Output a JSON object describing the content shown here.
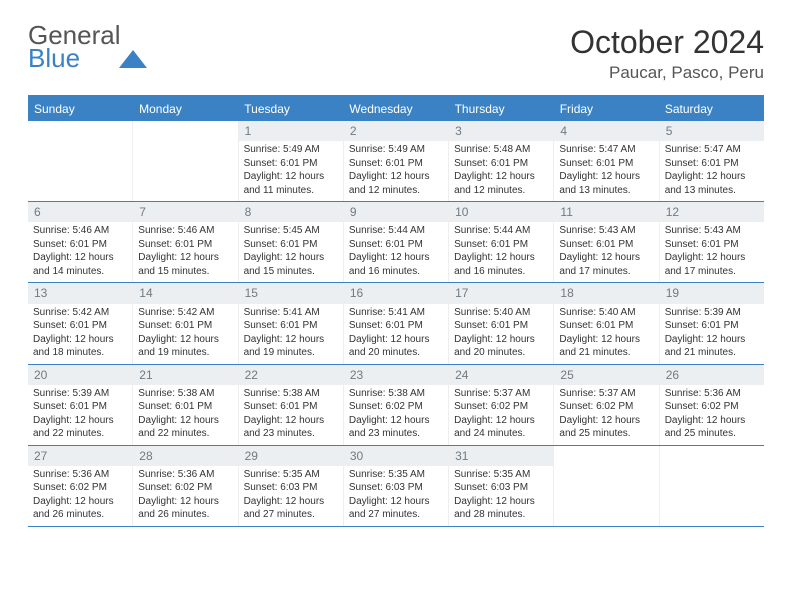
{
  "logo": {
    "word1": "General",
    "word2": "Blue"
  },
  "title": "October 2024",
  "location": "Paucar, Pasco, Peru",
  "day_names": [
    "Sunday",
    "Monday",
    "Tuesday",
    "Wednesday",
    "Thursday",
    "Friday",
    "Saturday"
  ],
  "colors": {
    "brand": "#3b82c4",
    "header_bg": "#3b82c4",
    "daynum_bg": "#eceff1",
    "daynum_fg": "#707a82"
  },
  "weeks": [
    [
      null,
      null,
      {
        "n": "1",
        "sr": "5:49 AM",
        "ss": "6:01 PM",
        "dl": "12 hours and 11 minutes."
      },
      {
        "n": "2",
        "sr": "5:49 AM",
        "ss": "6:01 PM",
        "dl": "12 hours and 12 minutes."
      },
      {
        "n": "3",
        "sr": "5:48 AM",
        "ss": "6:01 PM",
        "dl": "12 hours and 12 minutes."
      },
      {
        "n": "4",
        "sr": "5:47 AM",
        "ss": "6:01 PM",
        "dl": "12 hours and 13 minutes."
      },
      {
        "n": "5",
        "sr": "5:47 AM",
        "ss": "6:01 PM",
        "dl": "12 hours and 13 minutes."
      }
    ],
    [
      {
        "n": "6",
        "sr": "5:46 AM",
        "ss": "6:01 PM",
        "dl": "12 hours and 14 minutes."
      },
      {
        "n": "7",
        "sr": "5:46 AM",
        "ss": "6:01 PM",
        "dl": "12 hours and 15 minutes."
      },
      {
        "n": "8",
        "sr": "5:45 AM",
        "ss": "6:01 PM",
        "dl": "12 hours and 15 minutes."
      },
      {
        "n": "9",
        "sr": "5:44 AM",
        "ss": "6:01 PM",
        "dl": "12 hours and 16 minutes."
      },
      {
        "n": "10",
        "sr": "5:44 AM",
        "ss": "6:01 PM",
        "dl": "12 hours and 16 minutes."
      },
      {
        "n": "11",
        "sr": "5:43 AM",
        "ss": "6:01 PM",
        "dl": "12 hours and 17 minutes."
      },
      {
        "n": "12",
        "sr": "5:43 AM",
        "ss": "6:01 PM",
        "dl": "12 hours and 17 minutes."
      }
    ],
    [
      {
        "n": "13",
        "sr": "5:42 AM",
        "ss": "6:01 PM",
        "dl": "12 hours and 18 minutes."
      },
      {
        "n": "14",
        "sr": "5:42 AM",
        "ss": "6:01 PM",
        "dl": "12 hours and 19 minutes."
      },
      {
        "n": "15",
        "sr": "5:41 AM",
        "ss": "6:01 PM",
        "dl": "12 hours and 19 minutes."
      },
      {
        "n": "16",
        "sr": "5:41 AM",
        "ss": "6:01 PM",
        "dl": "12 hours and 20 minutes."
      },
      {
        "n": "17",
        "sr": "5:40 AM",
        "ss": "6:01 PM",
        "dl": "12 hours and 20 minutes."
      },
      {
        "n": "18",
        "sr": "5:40 AM",
        "ss": "6:01 PM",
        "dl": "12 hours and 21 minutes."
      },
      {
        "n": "19",
        "sr": "5:39 AM",
        "ss": "6:01 PM",
        "dl": "12 hours and 21 minutes."
      }
    ],
    [
      {
        "n": "20",
        "sr": "5:39 AM",
        "ss": "6:01 PM",
        "dl": "12 hours and 22 minutes."
      },
      {
        "n": "21",
        "sr": "5:38 AM",
        "ss": "6:01 PM",
        "dl": "12 hours and 22 minutes."
      },
      {
        "n": "22",
        "sr": "5:38 AM",
        "ss": "6:01 PM",
        "dl": "12 hours and 23 minutes."
      },
      {
        "n": "23",
        "sr": "5:38 AM",
        "ss": "6:02 PM",
        "dl": "12 hours and 23 minutes."
      },
      {
        "n": "24",
        "sr": "5:37 AM",
        "ss": "6:02 PM",
        "dl": "12 hours and 24 minutes."
      },
      {
        "n": "25",
        "sr": "5:37 AM",
        "ss": "6:02 PM",
        "dl": "12 hours and 25 minutes."
      },
      {
        "n": "26",
        "sr": "5:36 AM",
        "ss": "6:02 PM",
        "dl": "12 hours and 25 minutes."
      }
    ],
    [
      {
        "n": "27",
        "sr": "5:36 AM",
        "ss": "6:02 PM",
        "dl": "12 hours and 26 minutes."
      },
      {
        "n": "28",
        "sr": "5:36 AM",
        "ss": "6:02 PM",
        "dl": "12 hours and 26 minutes."
      },
      {
        "n": "29",
        "sr": "5:35 AM",
        "ss": "6:03 PM",
        "dl": "12 hours and 27 minutes."
      },
      {
        "n": "30",
        "sr": "5:35 AM",
        "ss": "6:03 PM",
        "dl": "12 hours and 27 minutes."
      },
      {
        "n": "31",
        "sr": "5:35 AM",
        "ss": "6:03 PM",
        "dl": "12 hours and 28 minutes."
      },
      null,
      null
    ]
  ],
  "labels": {
    "sunrise": "Sunrise:",
    "sunset": "Sunset:",
    "daylight": "Daylight:"
  }
}
